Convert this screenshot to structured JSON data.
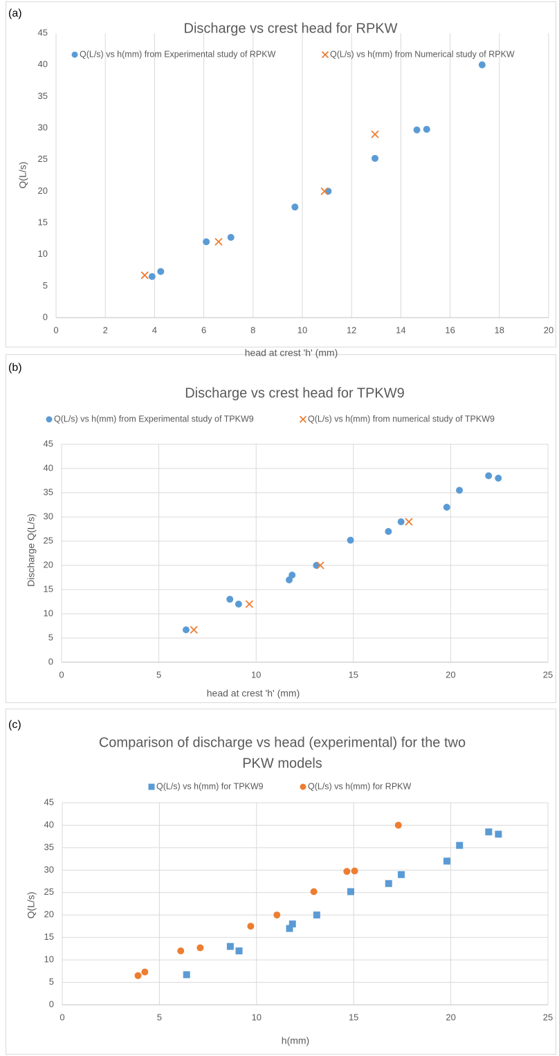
{
  "chart_data": [
    {
      "type": "scatter",
      "panel_label": "(a)",
      "title": "Discharge vs crest head for RPKW",
      "xlabel": "head at crest 'h' (mm)",
      "ylabel": "Q(L/s)",
      "xlim": [
        0,
        20
      ],
      "xstep": 2,
      "ylim": [
        0,
        45
      ],
      "ystep": 5,
      "grid": "vertical",
      "legend": "top",
      "series": [
        {
          "name": "Q(L/s) vs h(mm) from Experimental study of RPKW",
          "marker": "circle",
          "color": "#5b9bd5",
          "points": [
            [
              3.9,
              6.5
            ],
            [
              4.25,
              7.3
            ],
            [
              6.1,
              12
            ],
            [
              7.1,
              12.7
            ],
            [
              9.7,
              17.5
            ],
            [
              11.05,
              20
            ],
            [
              12.95,
              25.2
            ],
            [
              14.65,
              29.7
            ],
            [
              15.05,
              29.8
            ],
            [
              17.3,
              40
            ]
          ]
        },
        {
          "name": "Q(L/s) vs h(mm) from Numerical study of RPKW",
          "marker": "x",
          "color": "#ed7d31",
          "points": [
            [
              3.6,
              6.7
            ],
            [
              6.6,
              12
            ],
            [
              10.9,
              20
            ],
            [
              12.95,
              29
            ]
          ]
        }
      ]
    },
    {
      "type": "scatter",
      "panel_label": "(b)",
      "title": "Discharge vs crest head for TPKW9",
      "xlabel": "head at crest 'h' (mm)",
      "ylabel": "Discharge Q(L/s)",
      "xlim": [
        0,
        25
      ],
      "xstep": 5,
      "ylim": [
        0,
        45
      ],
      "ystep": 5,
      "grid": "both",
      "legend": "top",
      "series": [
        {
          "name": "Q(L/s) vs h(mm) from Experimental study of TPKW9",
          "marker": "circle",
          "color": "#5b9bd5",
          "points": [
            [
              6.4,
              6.7
            ],
            [
              8.65,
              13
            ],
            [
              9.1,
              12
            ],
            [
              11.7,
              17
            ],
            [
              11.85,
              18
            ],
            [
              13.1,
              20
            ],
            [
              14.85,
              25.2
            ],
            [
              16.8,
              27
            ],
            [
              17.45,
              29
            ],
            [
              19.8,
              32
            ],
            [
              20.45,
              35.5
            ],
            [
              21.95,
              38.5
            ],
            [
              22.45,
              38
            ]
          ]
        },
        {
          "name": "Q(L/s) vs h(mm) from numerical study of TPKW9",
          "marker": "x",
          "color": "#ed7d31",
          "points": [
            [
              6.8,
              6.7
            ],
            [
              9.65,
              12
            ],
            [
              13.3,
              20
            ],
            [
              17.85,
              29
            ]
          ]
        }
      ]
    },
    {
      "type": "scatter",
      "panel_label": "(c)",
      "title": "Comparison of discharge vs head (experimental) for the two",
      "title_line2": "PKW models",
      "xlabel": "h(mm)",
      "ylabel": "Q(L/s)",
      "xlim": [
        0,
        25
      ],
      "xstep": 5,
      "ylim": [
        0,
        45
      ],
      "ystep": 5,
      "grid": "both",
      "legend": "top",
      "series": [
        {
          "name": "Q(L/s) vs h(mm) for TPKW9",
          "marker": "square",
          "color": "#5b9bd5",
          "points": [
            [
              6.4,
              6.7
            ],
            [
              8.65,
              13
            ],
            [
              9.1,
              12
            ],
            [
              11.7,
              17
            ],
            [
              11.85,
              18
            ],
            [
              13.1,
              20
            ],
            [
              14.85,
              25.2
            ],
            [
              16.8,
              27
            ],
            [
              17.45,
              29
            ],
            [
              19.8,
              32
            ],
            [
              20.45,
              35.5
            ],
            [
              21.95,
              38.5
            ],
            [
              22.45,
              38
            ]
          ]
        },
        {
          "name": "Q(L/s) vs h(mm) for RPKW",
          "marker": "circle",
          "color": "#ed7d31",
          "points": [
            [
              3.9,
              6.5
            ],
            [
              4.25,
              7.3
            ],
            [
              6.1,
              12
            ],
            [
              7.1,
              12.7
            ],
            [
              9.7,
              17.5
            ],
            [
              11.05,
              20
            ],
            [
              12.95,
              25.2
            ],
            [
              14.65,
              29.7
            ],
            [
              15.05,
              29.8
            ],
            [
              17.3,
              40
            ]
          ]
        }
      ]
    }
  ]
}
